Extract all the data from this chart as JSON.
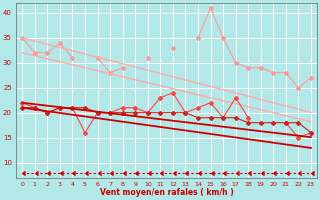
{
  "background_color": "#b2e8e8",
  "grid_color": "#ffffff",
  "xlabel": "Vent moyen/en rafales ( km/h )",
  "xlabel_color": "#cc0000",
  "tick_color": "#cc0000",
  "x_values": [
    0,
    1,
    2,
    3,
    4,
    5,
    6,
    7,
    8,
    9,
    10,
    11,
    12,
    13,
    14,
    15,
    16,
    17,
    18,
    19,
    20,
    21,
    22,
    23
  ],
  "ylim": [
    7,
    42
  ],
  "yticks": [
    10,
    15,
    20,
    25,
    30,
    35,
    40
  ],
  "series": [
    {
      "name": "jagged_light",
      "color": "#ff9999",
      "linewidth": 0.8,
      "marker": "D",
      "markersize": 2,
      "values": [
        35,
        32,
        32,
        34,
        31,
        null,
        31,
        28,
        29,
        null,
        31,
        null,
        33,
        null,
        35,
        41,
        35,
        30,
        29,
        29,
        28,
        28,
        25,
        27
      ]
    },
    {
      "name": "trend_upper_top",
      "color": "#ffaaaa",
      "linewidth": 1.0,
      "marker": null,
      "values": [
        35.0,
        34.35,
        33.7,
        33.05,
        32.4,
        31.75,
        31.1,
        30.45,
        29.8,
        29.15,
        28.5,
        27.85,
        27.2,
        26.55,
        25.9,
        25.25,
        24.6,
        23.95,
        23.3,
        22.65,
        22.0,
        21.35,
        20.7,
        20.05
      ]
    },
    {
      "name": "trend_upper_bottom",
      "color": "#ffaaaa",
      "linewidth": 1.0,
      "marker": null,
      "values": [
        32.0,
        31.4,
        30.8,
        30.2,
        29.6,
        29.0,
        28.4,
        27.8,
        27.2,
        26.6,
        26.0,
        25.4,
        24.8,
        24.2,
        23.6,
        23.0,
        22.4,
        21.8,
        21.2,
        20.6,
        20.0,
        19.4,
        18.8,
        18.2
      ]
    },
    {
      "name": "jagged_red",
      "color": "#ff4444",
      "linewidth": 0.8,
      "marker": "D",
      "markersize": 2,
      "values": [
        22,
        21,
        20,
        21,
        21,
        16,
        20,
        20,
        21,
        21,
        20,
        23,
        24,
        20,
        21,
        22,
        19,
        23,
        19,
        null,
        null,
        18,
        15,
        16
      ]
    },
    {
      "name": "flat_red",
      "color": "#cc2222",
      "linewidth": 0.8,
      "marker": "D",
      "markersize": 2,
      "values": [
        21,
        21,
        20,
        21,
        21,
        21,
        20,
        20,
        20,
        20,
        20,
        20,
        20,
        20,
        19,
        19,
        19,
        19,
        18,
        18,
        18,
        18,
        18,
        16
      ]
    },
    {
      "name": "trend_red_top",
      "color": "#cc0000",
      "linewidth": 1.3,
      "marker": null,
      "values": [
        22.0,
        21.7,
        21.4,
        21.1,
        20.8,
        20.5,
        20.2,
        19.9,
        19.6,
        19.3,
        19.0,
        18.7,
        18.4,
        18.1,
        17.8,
        17.5,
        17.2,
        16.9,
        16.6,
        16.3,
        16.0,
        15.7,
        15.4,
        15.1
      ]
    },
    {
      "name": "trend_red_bottom",
      "color": "#cc0000",
      "linewidth": 1.3,
      "marker": null,
      "values": [
        21.0,
        20.65,
        20.3,
        19.95,
        19.6,
        19.25,
        18.9,
        18.55,
        18.2,
        17.85,
        17.5,
        17.15,
        16.8,
        16.45,
        16.1,
        15.75,
        15.4,
        15.05,
        14.7,
        14.35,
        14.0,
        13.65,
        13.3,
        12.95
      ]
    },
    {
      "name": "arrow_line",
      "color": "#cc0000",
      "linewidth": 0.8,
      "marker": 4,
      "markersize": 3,
      "values": [
        8,
        8,
        8,
        8,
        8,
        8,
        8,
        8,
        8,
        8,
        8,
        8,
        8,
        8,
        8,
        8,
        8,
        8,
        8,
        8,
        8,
        8,
        8,
        8
      ]
    }
  ]
}
